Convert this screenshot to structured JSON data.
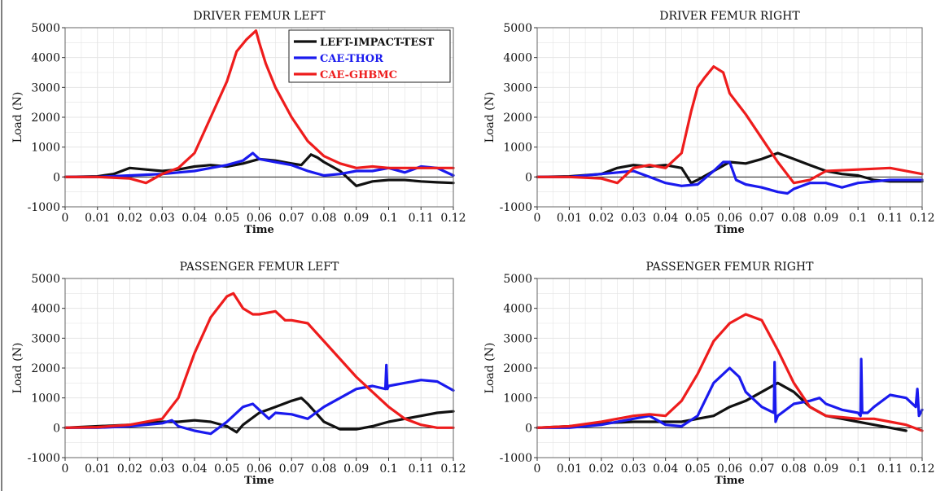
{
  "colors": {
    "test": "#111111",
    "thor": "#1a1aee",
    "ghbmc": "#ee1c1c",
    "grid": "#e4e4e4",
    "frame": "#666666",
    "zero_line": "#222222"
  },
  "legend": [
    {
      "name": "LEFT-IMPACT-TEST",
      "key": "test"
    },
    {
      "name": "CAE-THOR",
      "key": "thor"
    },
    {
      "name": "CAE-GHBMC",
      "key": "ghbmc"
    }
  ],
  "chart_data": [
    {
      "type": "line",
      "title": "DRIVER FEMUR LEFT",
      "xlabel": "Time",
      "ylabel": "Load (N)",
      "xlim": [
        0,
        0.12
      ],
      "ylim": [
        -1000,
        5000
      ],
      "xticks": [
        "0",
        "0.01",
        "0.02",
        "0.03",
        "0.04",
        "0.05",
        "0.06",
        "0.07",
        "0.08",
        "0.09",
        "0.1",
        "0.11",
        "0.12"
      ],
      "yticks": [
        "-1000",
        "0",
        "1000",
        "2000",
        "3000",
        "4000",
        "5000"
      ],
      "grid": true,
      "legend_position": "top-right",
      "series": [
        {
          "name": "LEFT-IMPACT-TEST",
          "key": "test",
          "x": [
            0,
            0.01,
            0.015,
            0.02,
            0.025,
            0.03,
            0.035,
            0.04,
            0.045,
            0.05,
            0.055,
            0.06,
            0.065,
            0.07,
            0.073,
            0.076,
            0.078,
            0.08,
            0.085,
            0.09,
            0.095,
            0.1,
            0.105,
            0.11,
            0.115,
            0.12
          ],
          "y": [
            0,
            20,
            100,
            300,
            250,
            200,
            250,
            350,
            400,
            350,
            450,
            600,
            550,
            450,
            400,
            750,
            650,
            500,
            200,
            -300,
            -150,
            -100,
            -100,
            -150,
            -180,
            -200
          ]
        },
        {
          "name": "CAE-THOR",
          "key": "thor",
          "x": [
            0,
            0.01,
            0.02,
            0.03,
            0.035,
            0.04,
            0.045,
            0.05,
            0.055,
            0.058,
            0.06,
            0.065,
            0.07,
            0.075,
            0.08,
            0.085,
            0.09,
            0.095,
            0.1,
            0.105,
            0.11,
            0.115,
            0.12
          ],
          "y": [
            0,
            0,
            50,
            100,
            150,
            200,
            300,
            400,
            550,
            800,
            600,
            500,
            400,
            200,
            50,
            100,
            200,
            200,
            300,
            150,
            350,
            300,
            50
          ]
        },
        {
          "name": "CAE-GHBMC",
          "key": "ghbmc",
          "x": [
            0,
            0.01,
            0.02,
            0.025,
            0.03,
            0.035,
            0.04,
            0.045,
            0.05,
            0.053,
            0.056,
            0.059,
            0.06,
            0.062,
            0.065,
            0.07,
            0.075,
            0.08,
            0.085,
            0.09,
            0.095,
            0.1,
            0.11,
            0.12
          ],
          "y": [
            0,
            0,
            -50,
            -200,
            100,
            300,
            800,
            2000,
            3200,
            4200,
            4600,
            4900,
            4500,
            3800,
            3000,
            2000,
            1200,
            700,
            450,
            300,
            350,
            300,
            300,
            300
          ]
        }
      ]
    },
    {
      "type": "line",
      "title": "DRIVER FEMUR RIGHT",
      "xlabel": "Time",
      "ylabel": "Load (N)",
      "xlim": [
        0,
        0.12
      ],
      "ylim": [
        -1000,
        5000
      ],
      "xticks": [
        "0",
        "0.01",
        "0.02",
        "0.03",
        "0.04",
        "0.05",
        "0.06",
        "0.07",
        "0.08",
        "0.09",
        "0.1",
        "0.11",
        "0.12"
      ],
      "yticks": [
        "-1000",
        "0",
        "1000",
        "2000",
        "3000",
        "4000",
        "5000"
      ],
      "grid": true,
      "series": [
        {
          "name": "LEFT-IMPACT-TEST",
          "key": "test",
          "x": [
            0,
            0.01,
            0.02,
            0.025,
            0.03,
            0.035,
            0.04,
            0.045,
            0.048,
            0.05,
            0.055,
            0.06,
            0.065,
            0.07,
            0.075,
            0.08,
            0.085,
            0.09,
            0.095,
            0.1,
            0.105,
            0.11,
            0.12
          ],
          "y": [
            0,
            20,
            100,
            300,
            400,
            350,
            400,
            300,
            -200,
            -100,
            200,
            500,
            450,
            600,
            800,
            600,
            400,
            200,
            100,
            50,
            -100,
            -150,
            -150
          ]
        },
        {
          "name": "CAE-THOR",
          "key": "thor",
          "x": [
            0,
            0.01,
            0.02,
            0.03,
            0.035,
            0.04,
            0.045,
            0.05,
            0.055,
            0.058,
            0.06,
            0.062,
            0.065,
            0.07,
            0.075,
            0.078,
            0.08,
            0.085,
            0.09,
            0.095,
            0.1,
            0.105,
            0.11,
            0.12
          ],
          "y": [
            0,
            0,
            100,
            200,
            0,
            -200,
            -300,
            -250,
            200,
            500,
            500,
            -100,
            -250,
            -350,
            -500,
            -550,
            -400,
            -200,
            -200,
            -350,
            -200,
            -150,
            -100,
            -100
          ]
        },
        {
          "name": "CAE-GHBMC",
          "key": "ghbmc",
          "x": [
            0,
            0.01,
            0.02,
            0.025,
            0.03,
            0.035,
            0.04,
            0.045,
            0.048,
            0.05,
            0.052,
            0.055,
            0.058,
            0.06,
            0.065,
            0.07,
            0.075,
            0.08,
            0.085,
            0.09,
            0.1,
            0.11,
            0.12
          ],
          "y": [
            0,
            0,
            -50,
            -200,
            300,
            400,
            300,
            800,
            2200,
            3000,
            3300,
            3700,
            3500,
            2800,
            2100,
            1300,
            500,
            -200,
            -100,
            200,
            250,
            300,
            100
          ]
        }
      ]
    },
    {
      "type": "line",
      "title": "PASSENGER FEMUR LEFT",
      "xlabel": "Time",
      "ylabel": "Load (N)",
      "xlim": [
        0,
        0.12
      ],
      "ylim": [
        -1000,
        5000
      ],
      "xticks": [
        "0",
        "0.01",
        "0.02",
        "0.03",
        "0.04",
        "0.05",
        "0.06",
        "0.07",
        "0.08",
        "0.09",
        "0.1",
        "0.11",
        "0.12"
      ],
      "yticks": [
        "-1000",
        "0",
        "1000",
        "2000",
        "3000",
        "4000",
        "5000"
      ],
      "grid": true,
      "series": [
        {
          "name": "LEFT-IMPACT-TEST",
          "key": "test",
          "x": [
            0,
            0.01,
            0.02,
            0.03,
            0.035,
            0.04,
            0.045,
            0.05,
            0.053,
            0.055,
            0.06,
            0.065,
            0.07,
            0.073,
            0.075,
            0.08,
            0.085,
            0.09,
            0.095,
            0.1,
            0.105,
            0.11,
            0.115,
            0.12
          ],
          "y": [
            0,
            50,
            100,
            200,
            200,
            250,
            200,
            50,
            -150,
            100,
            500,
            700,
            900,
            1000,
            800,
            200,
            -50,
            -50,
            50,
            200,
            300,
            400,
            500,
            550
          ]
        },
        {
          "name": "CAE-THOR",
          "key": "thor",
          "x": [
            0,
            0.01,
            0.02,
            0.03,
            0.033,
            0.035,
            0.04,
            0.045,
            0.05,
            0.055,
            0.058,
            0.06,
            0.063,
            0.065,
            0.07,
            0.075,
            0.08,
            0.085,
            0.09,
            0.095,
            0.099,
            0.0993,
            0.0996,
            0.1,
            0.105,
            0.11,
            0.115,
            0.12
          ],
          "y": [
            0,
            0,
            50,
            150,
            250,
            50,
            -100,
            -200,
            200,
            700,
            800,
            600,
            300,
            500,
            450,
            300,
            700,
            1000,
            1300,
            1400,
            1300,
            2100,
            1300,
            1400,
            1500,
            1600,
            1550,
            1250
          ]
        },
        {
          "name": "CAE-GHBMC",
          "key": "ghbmc",
          "x": [
            0,
            0.01,
            0.02,
            0.03,
            0.035,
            0.04,
            0.045,
            0.05,
            0.052,
            0.055,
            0.058,
            0.06,
            0.065,
            0.068,
            0.07,
            0.075,
            0.08,
            0.085,
            0.09,
            0.095,
            0.1,
            0.105,
            0.11,
            0.115,
            0.12
          ],
          "y": [
            0,
            20,
            100,
            300,
            1000,
            2500,
            3700,
            4400,
            4500,
            4000,
            3800,
            3800,
            3900,
            3600,
            3600,
            3500,
            2900,
            2300,
            1700,
            1200,
            700,
            300,
            100,
            0,
            0
          ]
        }
      ]
    },
    {
      "type": "line",
      "title": "PASSENGER FEMUR RIGHT",
      "xlabel": "Time",
      "ylabel": "Load (N)",
      "xlim": [
        0,
        0.12
      ],
      "ylim": [
        -1000,
        5000
      ],
      "xticks": [
        "0",
        "0.01",
        "0.02",
        "0.03",
        "0.04",
        "0.05",
        "0.06",
        "0.07",
        "0.08",
        "0.09",
        "0.1",
        "0.11",
        "0.12"
      ],
      "yticks": [
        "-1000",
        "0",
        "1000",
        "2000",
        "3000",
        "4000",
        "5000"
      ],
      "grid": true,
      "series": [
        {
          "name": "LEFT-IMPACT-TEST",
          "key": "test",
          "x": [
            0,
            0.01,
            0.02,
            0.03,
            0.04,
            0.045,
            0.05,
            0.055,
            0.06,
            0.065,
            0.07,
            0.075,
            0.08,
            0.085,
            0.09,
            0.095,
            0.1,
            0.105,
            0.11,
            0.115
          ],
          "y": [
            0,
            50,
            150,
            200,
            200,
            200,
            300,
            400,
            700,
            900,
            1200,
            1500,
            1200,
            700,
            400,
            300,
            200,
            100,
            0,
            -100
          ]
        },
        {
          "name": "CAE-THOR",
          "key": "thor",
          "x": [
            0,
            0.01,
            0.02,
            0.03,
            0.035,
            0.04,
            0.045,
            0.05,
            0.055,
            0.06,
            0.063,
            0.065,
            0.07,
            0.0738,
            0.074,
            0.0743,
            0.075,
            0.08,
            0.085,
            0.088,
            0.09,
            0.095,
            0.1,
            0.1008,
            0.101,
            0.1013,
            0.103,
            0.105,
            0.11,
            0.115,
            0.118,
            0.1185,
            0.119,
            0.12
          ],
          "y": [
            0,
            0,
            100,
            300,
            400,
            100,
            50,
            400,
            1500,
            2000,
            1700,
            1200,
            700,
            500,
            2200,
            200,
            400,
            800,
            900,
            1000,
            800,
            600,
            500,
            400,
            2300,
            500,
            500,
            700,
            1100,
            1000,
            700,
            1300,
            400,
            600
          ]
        },
        {
          "name": "CAE-GHBMC",
          "key": "ghbmc",
          "x": [
            0,
            0.01,
            0.02,
            0.03,
            0.035,
            0.04,
            0.045,
            0.05,
            0.055,
            0.06,
            0.065,
            0.07,
            0.075,
            0.08,
            0.085,
            0.09,
            0.095,
            0.1,
            0.105,
            0.11,
            0.115,
            0.12
          ],
          "y": [
            0,
            50,
            200,
            400,
            450,
            400,
            900,
            1800,
            2900,
            3500,
            3800,
            3600,
            2600,
            1500,
            700,
            400,
            350,
            300,
            300,
            200,
            100,
            -100
          ]
        }
      ]
    }
  ]
}
